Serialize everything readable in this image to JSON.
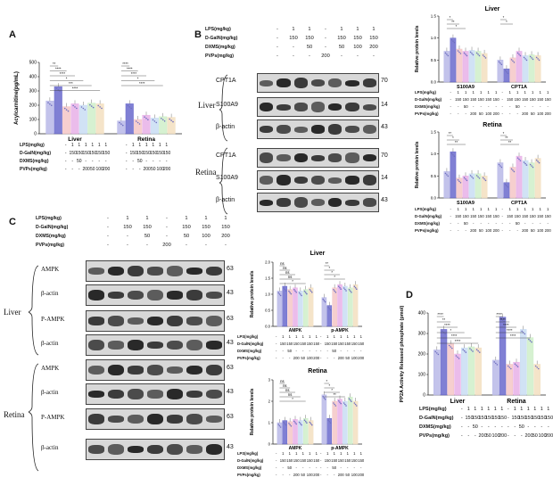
{
  "panels": {
    "A": {
      "letter": "A",
      "chart_data": {
        "type": "bar",
        "ylabel": "Acylcarnitine(pg/mL)",
        "ylim": [
          0,
          500
        ],
        "yticks": [
          "0",
          "100",
          "200",
          "300",
          "400",
          "500"
        ],
        "groups": [
          "Liver",
          "Retina"
        ],
        "values": [
          [
            230,
            330,
            190,
            210,
            200,
            215,
            210
          ],
          [
            90,
            210,
            100,
            130,
            110,
            120,
            115
          ]
        ],
        "bar_colors": [
          "#b8b8e8",
          "#6a6acc",
          "#f4c7c7",
          "#e8b0e8",
          "#c9ddf3",
          "#cfefc9",
          "#f3dfc0"
        ],
        "sig_labels": [
          "**",
          "****",
          "****",
          "*",
          "***",
          "****"
        ],
        "sig_labels_retina": [
          "****",
          "****",
          "****",
          "*",
          "****"
        ]
      },
      "conditions": {
        "labels": [
          "LPS(mg/kg)",
          "D-GalN(mg/kg)",
          "DXMS(mg/kg)",
          "PVPs(mg/kg)"
        ],
        "liver": [
          [
            "-",
            "1",
            "1",
            "1",
            "1",
            "1",
            "1"
          ],
          [
            "-",
            "150",
            "150",
            "150",
            "150",
            "150",
            "150"
          ],
          [
            "-",
            "-",
            "50",
            "-",
            "-",
            "-",
            "-"
          ],
          [
            "-",
            "-",
            "-",
            "200",
            "50",
            "100",
            "200"
          ]
        ],
        "retina": [
          [
            "-",
            "1",
            "1",
            "1",
            "1",
            "1",
            "1"
          ],
          [
            "-",
            "150",
            "150",
            "150",
            "150",
            "150",
            "150"
          ],
          [
            "-",
            "-",
            "50",
            "-",
            "-",
            "-",
            "-"
          ],
          [
            "-",
            "-",
            "-",
            "200",
            "50",
            "100",
            "200"
          ]
        ]
      }
    },
    "B": {
      "letter": "B",
      "header_labels": [
        "LPS(mg/kg)",
        "D-GalN(mg/kg)",
        "DXMS(mg/kg)",
        "PVPs(mg/kg)"
      ],
      "header_values": [
        [
          "-",
          "1",
          "1",
          "-",
          "1",
          "1",
          "1"
        ],
        [
          "-",
          "150",
          "150",
          "-",
          "150",
          "150",
          "150"
        ],
        [
          "-",
          "-",
          "50",
          "-",
          "50",
          "100",
          "200"
        ],
        [
          "-",
          "-",
          "-",
          "200",
          "-",
          "-",
          "-"
        ]
      ],
      "tissues": [
        "Liver",
        "Retina"
      ],
      "blots_liver": [
        {
          "name": "CPT1A",
          "kda": "70"
        },
        {
          "name": "S100A9",
          "kda": "14"
        },
        {
          "name": "β-actin",
          "kda": "43"
        }
      ],
      "blots_retina": [
        {
          "name": "CPT1A",
          "kda": "70"
        },
        {
          "name": "S100A9",
          "kda": "14"
        },
        {
          "name": "β-actin",
          "kda": "43"
        }
      ],
      "charts": [
        {
          "title": "Liver",
          "chart_data": {
            "type": "bar",
            "ylabel": "Relative protein levels",
            "ylim": [
              0,
              1.5
            ],
            "yticks": [
              "0.0",
              "0.5",
              "1.0",
              "1.5"
            ],
            "groups": [
              "S100A9",
              "CPT1A"
            ],
            "values": [
              [
                0.7,
                1.0,
                0.75,
                0.7,
                0.72,
                0.7,
                0.65
              ],
              [
                0.5,
                0.3,
                0.55,
                0.7,
                0.6,
                0.62,
                0.6
              ]
            ],
            "sig_labels": [
              "*",
              "**",
              "*",
              "*",
              "*"
            ]
          }
        },
        {
          "title": "Retina",
          "chart_data": {
            "type": "bar",
            "ylabel": "Relative protein levels",
            "ylim": [
              0,
              1.5
            ],
            "yticks": [
              "0.0",
              "0.5",
              "1.0",
              "1.5"
            ],
            "groups": [
              "S100A9",
              "CPT1A"
            ],
            "values": [
              [
                0.6,
                1.05,
                0.45,
                0.5,
                0.55,
                0.55,
                0.5
              ],
              [
                0.8,
                0.35,
                0.7,
                0.95,
                0.85,
                0.8,
                0.9
              ]
            ],
            "sig_labels": [
              "**",
              "*",
              "**",
              "*",
              "**",
              "**"
            ]
          }
        }
      ],
      "chart_conditions": {
        "labels": [
          "LPS(mg/kg)",
          "D-GalN(mg/kg)",
          "DXMS(mg/kg)",
          "PVPs(mg/kg)"
        ],
        "values": [
          [
            "-",
            "1",
            "1",
            "1",
            "1",
            "1",
            "1"
          ],
          [
            "-",
            "150",
            "150",
            "150",
            "150",
            "150",
            "150"
          ],
          [
            "-",
            "-",
            "50",
            "-",
            "-",
            "-",
            "-"
          ],
          [
            "-",
            "-",
            "-",
            "200",
            "50",
            "100",
            "200"
          ]
        ]
      }
    },
    "C": {
      "letter": "C",
      "header_labels": [
        "LPS(mg/kg)",
        "D-GalN(mg/kg)",
        "DXMS(mg/kg)",
        "PVPs(mg/kg)"
      ],
      "header_values": [
        [
          "-",
          "1",
          "1",
          "-",
          "1",
          "1",
          "1"
        ],
        [
          "-",
          "150",
          "150",
          "-",
          "150",
          "150",
          "150"
        ],
        [
          "-",
          "-",
          "50",
          "-",
          "50",
          "100",
          "200"
        ],
        [
          "-",
          "-",
          "-",
          "200",
          "-",
          "-",
          "-"
        ]
      ],
      "tissues": [
        "Liver",
        "Retina"
      ],
      "blots_liver": [
        {
          "name": "AMPK",
          "kda": "63"
        },
        {
          "name": "β-actin",
          "kda": "43"
        },
        {
          "name": "P-AMPK",
          "kda": "63"
        },
        {
          "name": "β-actin",
          "kda": "43"
        }
      ],
      "blots_retina": [
        {
          "name": "AMPK",
          "kda": "63"
        },
        {
          "name": "β-actin",
          "kda": "43"
        },
        {
          "name": "P-AMPK",
          "kda": "63"
        },
        {
          "name": "β-actin",
          "kda": "43"
        }
      ],
      "charts": [
        {
          "title": "Liver",
          "chart_data": {
            "type": "bar",
            "ylabel": "Relative protein levels",
            "ylim": [
              0,
              2.0
            ],
            "yticks": [
              "0.0",
              "0.5",
              "1.0",
              "1.5",
              "2.0"
            ],
            "groups": [
              "AMPK",
              "p-AMPK"
            ],
            "values": [
              [
                1.1,
                1.25,
                1.15,
                1.2,
                1.1,
                1.15,
                1.2
              ],
              [
                0.9,
                0.65,
                1.2,
                1.3,
                1.25,
                1.2,
                1.3
              ]
            ],
            "sig_labels": [
              "ns",
              "ns",
              "ns",
              "ns",
              "*",
              "**",
              "*",
              "*",
              "*"
            ]
          }
        },
        {
          "title": "Retina",
          "chart_data": {
            "type": "bar",
            "ylabel": "Relative protein levels",
            "ylim": [
              0,
              3
            ],
            "yticks": [
              "0",
              "1",
              "2",
              "3"
            ],
            "groups": [
              "AMPK",
              "p-AMPK"
            ],
            "values": [
              [
                1.0,
                1.1,
                1.05,
                1.15,
                1.1,
                1.2,
                1.1
              ],
              [
                2.3,
                1.2,
                2.0,
                2.1,
                2.0,
                2.2,
                2.0
              ]
            ],
            "sig_labels": [
              "ns",
              "ns",
              "ns",
              "ns",
              "*",
              "*",
              "*",
              "*",
              "**"
            ]
          }
        }
      ],
      "chart_conditions": {
        "labels": [
          "LPS(mg/kg)",
          "D-GalN(mg/kg)",
          "DXMS(mg/kg)",
          "PVPs(mg/kg)"
        ],
        "values": [
          [
            "-",
            "1",
            "1",
            "1",
            "1",
            "1",
            "1"
          ],
          [
            "-",
            "150",
            "150",
            "150",
            "150",
            "150",
            "150"
          ],
          [
            "-",
            "-",
            "50",
            "-",
            "-",
            "-",
            "-"
          ],
          [
            "-",
            "-",
            "-",
            "200",
            "50",
            "100",
            "200"
          ]
        ]
      }
    },
    "D": {
      "letter": "D",
      "chart_data": {
        "type": "bar",
        "ylabel": "PP2A Activity Released phosphate (pmol)",
        "ylim": [
          0,
          400
        ],
        "yticks": [
          "0",
          "100",
          "200",
          "300",
          "400"
        ],
        "groups": [
          "Liver",
          "Retina"
        ],
        "values": [
          [
            220,
            320,
            250,
            200,
            230,
            235,
            230
          ],
          [
            170,
            380,
            150,
            160,
            320,
            280,
            150
          ]
        ],
        "bar_colors": [
          "#b8b8e8",
          "#6a6acc",
          "#f4c7c7",
          "#e8b0e8",
          "#c9ddf3",
          "#cfefc9",
          "#f3dfc0"
        ],
        "sig_labels": [
          "****",
          "**",
          "****",
          "*",
          "****",
          "****"
        ],
        "sig_labels_retina": [
          "****",
          "****",
          "****",
          "****",
          "****"
        ]
      },
      "conditions": {
        "labels": [
          "LPS(mg/kg)",
          "D-GalN(mg/kg)",
          "DXMS(mg/kg)",
          "PVPs(mg/kg)"
        ],
        "liver": [
          [
            "-",
            "1",
            "1",
            "1",
            "1",
            "1",
            "1"
          ],
          [
            "-",
            "150",
            "150",
            "150",
            "150",
            "150",
            "150"
          ],
          [
            "-",
            "-",
            "50",
            "-",
            "-",
            "-",
            "-"
          ],
          [
            "-",
            "-",
            "-",
            "200",
            "50",
            "100",
            "200"
          ]
        ],
        "retina": [
          [
            "-",
            "1",
            "1",
            "1",
            "1",
            "1",
            "1"
          ],
          [
            "-",
            "150",
            "150",
            "150",
            "150",
            "150",
            "150"
          ],
          [
            "-",
            "-",
            "50",
            "-",
            "-",
            "-",
            "-"
          ],
          [
            "-",
            "-",
            "-",
            "200",
            "50",
            "100",
            "200"
          ]
        ]
      }
    }
  },
  "colors": {
    "bar_palette": [
      "#b8b8e8",
      "#6a6acc",
      "#f4c7c7",
      "#e8b0e8",
      "#c9ddf3",
      "#cfefc9",
      "#f3dfc0"
    ],
    "blot_bg": "#d8d8d8",
    "band": "#1a1a1a"
  }
}
